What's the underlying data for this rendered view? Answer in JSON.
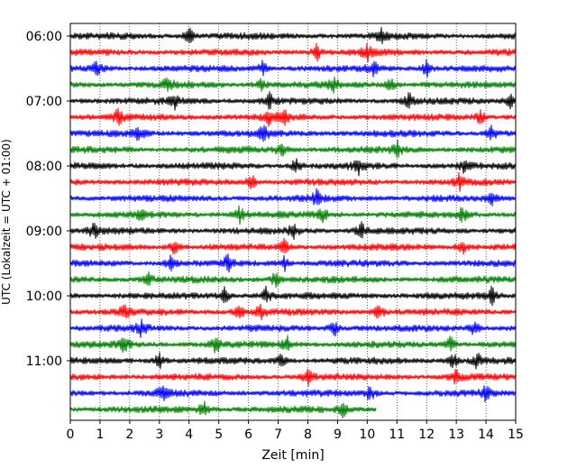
{
  "chart_data": {
    "type": "line",
    "title": "",
    "xlabel": "Zeit  [min]",
    "ylabel": "UTC (Lokalzeit = UTC + 01:00)",
    "xlim": [
      0,
      15
    ],
    "x_ticks": [
      "0",
      "1",
      "2",
      "3",
      "4",
      "5",
      "6",
      "7",
      "8",
      "9",
      "10",
      "11",
      "12",
      "13",
      "14",
      "15"
    ],
    "y_ticks": [
      "06:00",
      "07:00",
      "08:00",
      "09:00",
      "10:00",
      "11:00"
    ],
    "grid": "vertical dotted at each minute",
    "row_interval_minutes": 15,
    "colors": [
      "#000000",
      "#ff0000",
      "#0000ff",
      "#008000"
    ],
    "last_trace_end_minute": 10.3,
    "series": [
      {
        "start": "06:00",
        "color": "#000000",
        "spikes": [
          4.0,
          10.5
        ]
      },
      {
        "start": "06:15",
        "color": "#ff0000",
        "spikes": [
          8.3,
          10.0
        ]
      },
      {
        "start": "06:30",
        "color": "#0000ff",
        "spikes": [
          0.9,
          6.5,
          10.2,
          12.0
        ]
      },
      {
        "start": "06:45",
        "color": "#008000",
        "spikes": [
          3.3,
          6.4,
          8.9,
          10.8
        ]
      },
      {
        "start": "07:00",
        "color": "#000000",
        "spikes": [
          3.5,
          6.7,
          11.4,
          14.8
        ]
      },
      {
        "start": "07:15",
        "color": "#ff0000",
        "spikes": [
          1.6,
          6.7,
          7.2,
          13.8
        ]
      },
      {
        "start": "07:30",
        "color": "#0000ff",
        "spikes": [
          2.3,
          6.5,
          14.2
        ]
      },
      {
        "start": "07:45",
        "color": "#008000",
        "spikes": [
          7.1,
          11.0
        ]
      },
      {
        "start": "08:00",
        "color": "#000000",
        "spikes": [
          7.6,
          9.7,
          13.3
        ]
      },
      {
        "start": "08:15",
        "color": "#ff0000",
        "spikes": [
          6.1,
          13.1
        ]
      },
      {
        "start": "08:30",
        "color": "#0000ff",
        "spikes": [
          8.3,
          14.2
        ]
      },
      {
        "start": "08:45",
        "color": "#008000",
        "spikes": [
          2.4,
          5.7,
          8.5,
          13.2
        ]
      },
      {
        "start": "09:00",
        "color": "#000000",
        "spikes": [
          0.8,
          7.5,
          9.8
        ]
      },
      {
        "start": "09:15",
        "color": "#ff0000",
        "spikes": [
          3.5,
          7.2,
          13.2
        ]
      },
      {
        "start": "09:30",
        "color": "#0000ff",
        "spikes": [
          3.4,
          5.3,
          7.2
        ]
      },
      {
        "start": "09:45",
        "color": "#008000",
        "spikes": [
          2.6,
          6.9
        ]
      },
      {
        "start": "10:00",
        "color": "#000000",
        "spikes": [
          5.2,
          6.6,
          14.2
        ]
      },
      {
        "start": "10:15",
        "color": "#ff0000",
        "spikes": [
          1.8,
          5.7,
          6.4,
          10.4
        ]
      },
      {
        "start": "10:30",
        "color": "#0000ff",
        "spikes": [
          2.4,
          8.9,
          13.6
        ]
      },
      {
        "start": "10:45",
        "color": "#008000",
        "spikes": [
          1.8,
          4.9,
          7.3,
          12.8
        ]
      },
      {
        "start": "11:00",
        "color": "#000000",
        "spikes": [
          3.0,
          7.1,
          12.9,
          13.7
        ]
      },
      {
        "start": "11:15",
        "color": "#ff0000",
        "spikes": [
          8.0,
          13.0
        ]
      },
      {
        "start": "11:30",
        "color": "#0000ff",
        "spikes": [
          3.1,
          10.1,
          14.0
        ]
      },
      {
        "start": "11:45",
        "color": "#008000",
        "spikes": [
          4.5,
          9.2
        ]
      }
    ]
  }
}
